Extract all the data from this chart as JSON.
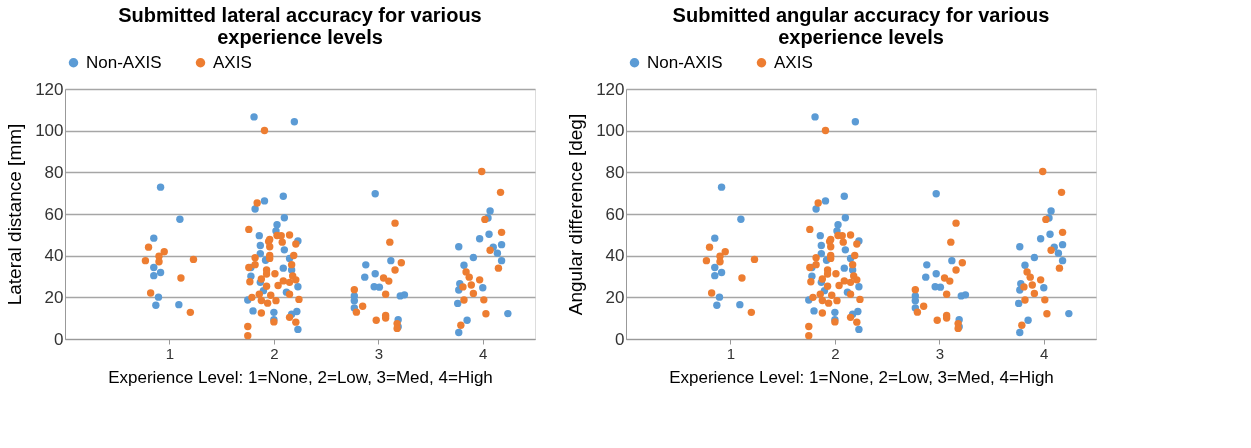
{
  "chart_data": [
    {
      "type": "scatter",
      "title": "Submitted lateral accuracy for various experience levels",
      "xlabel": "Experience Level: 1=None, 2=Low, 3=Med, 4=High",
      "ylabel": "Lateral distance [mm]",
      "xlim": [
        0,
        4.5
      ],
      "xticks": [
        1,
        2,
        3,
        4
      ],
      "ylim": [
        0,
        120
      ],
      "yticks": [
        0,
        20,
        40,
        60,
        80,
        100,
        120
      ],
      "grid": "y",
      "legend": "top",
      "marker": "circle",
      "series": [
        {
          "name": "Non-AXIS",
          "color": "#5b9bd5",
          "x": [
            0.915,
            1.1,
            0.85,
            0.85,
            0.85,
            0.915,
            0.895,
            0.87,
            1.09,
            1.81,
            1.91,
            1.82,
            2.09,
            2.1,
            2.03,
            2.02,
            1.86,
            1.87,
            1.87,
            1.92,
            2.09,
            1.78,
            1.78,
            1.87,
            1.9,
            1.75,
            1.8,
            2.0,
            2.0,
            2.1,
            2.196,
            2.23,
            2.15,
            2.17,
            2.23,
            2.12,
            2.22,
            2.17,
            2.23,
            2.97,
            2.88,
            2.87,
            2.97,
            3.12,
            2.96,
            3.01,
            2.77,
            2.77,
            2.77,
            3.21,
            3.25,
            3.19,
            3.19,
            3.77,
            3.82,
            3.91,
            3.97,
            4.06,
            4.07,
            4.05,
            4.1,
            4.14,
            4.18,
            4.18,
            3.78,
            3.77,
            3.76,
            4.0,
            3.85,
            4.24,
            3.77
          ],
          "values": [
            72.9,
            57.5,
            48.4,
            34.3,
            30.4,
            31.9,
            20.1,
            16.2,
            16.5,
            106.6,
            66.3,
            62.4,
            68.5,
            58.2,
            54.9,
            51.9,
            49.6,
            44.9,
            41.0,
            37.8,
            34.0,
            34.3,
            30.1,
            27.2,
            23.2,
            18.7,
            13.5,
            12.8,
            9.3,
            42.8,
            104.3,
            47.1,
            38.7,
            33.1,
            25.1,
            22.5,
            13.2,
            11.9,
            4.6,
            69.7,
            35.6,
            29.7,
            31.3,
            37.6,
            25.1,
            24.9,
            20.7,
            18.4,
            14.9,
            20.7,
            21.2,
            9.3,
            5.9,
            44.3,
            35.4,
            39.1,
            48.1,
            50.3,
            61.5,
            58.1,
            44.1,
            41.2,
            45.3,
            37.6,
            26.5,
            23.5,
            17.1,
            24.6,
            9.0,
            12.2,
            3.1
          ]
        },
        {
          "name": "AXIS",
          "color": "#ed7d31",
          "x": [
            0.8,
            0.77,
            0.95,
            0.9,
            0.9,
            1.23,
            1.11,
            0.82,
            1.2,
            1.91,
            1.84,
            1.76,
            1.95,
            1.96,
            2.03,
            2.07,
            2.08,
            1.82,
            1.96,
            1.96,
            1.96,
            1.82,
            1.76,
            1.93,
            2.01,
            1.93,
            1.88,
            1.77,
            1.93,
            2.09,
            2.04,
            1.86,
            1.79,
            1.97,
            2.02,
            1.88,
            1.94,
            1.88,
            2.0,
            1.75,
            1.75,
            2.15,
            2.21,
            2.19,
            2.17,
            2.18,
            2.21,
            2.15,
            2.15,
            2.24,
            2.15,
            2.21,
            3.16,
            3.11,
            3.22,
            3.16,
            3.05,
            3.1,
            3.07,
            2.77,
            2.85,
            2.79,
            2.98,
            3.07,
            3.07,
            3.18,
            3.18,
            3.99,
            4.17,
            4.02,
            4.18,
            4.07,
            4.15,
            3.84,
            3.87,
            3.81,
            3.89,
            3.97,
            3.91,
            3.82,
            4.01,
            4.03,
            3.79
          ],
          "values": [
            44.1,
            37.6,
            41.9,
            39.7,
            37.1,
            38.2,
            29.3,
            22.1,
            12.8,
            100.1,
            65.3,
            52.6,
            46.8,
            47.8,
            49.7,
            49.6,
            46.5,
            39.0,
            44.3,
            40.1,
            38.7,
            35.7,
            34.3,
            33.1,
            31.3,
            31.2,
            28.8,
            27.5,
            25.3,
            27.9,
            25.7,
            21.5,
            20.0,
            21.0,
            18.4,
            18.5,
            17.2,
            12.5,
            8.2,
            6.0,
            1.6,
            49.9,
            45.6,
            40.1,
            35.7,
            30.3,
            28.4,
            27.2,
            21.5,
            19.0,
            10.4,
            8.1,
            55.6,
            46.5,
            36.6,
            33.1,
            29.3,
            27.8,
            21.5,
            23.7,
            15.7,
            12.9,
            9.0,
            11.3,
            10.1,
            7.4,
            5.1,
            80.4,
            70.4,
            57.4,
            51.2,
            42.6,
            34.0,
            32.2,
            29.7,
            25.0,
            25.9,
            28.4,
            21.9,
            18.7,
            18.8,
            12.1,
            6.6
          ]
        }
      ]
    },
    {
      "type": "scatter",
      "title": "Submitted angular accuracy for various experience levels",
      "xlabel": "Experience Level: 1=None, 2=Low, 3=Med, 4=High",
      "ylabel": "Angular difference [deg]",
      "xlim": [
        0,
        4.5
      ],
      "xticks": [
        1,
        2,
        3,
        4
      ],
      "ylim": [
        0,
        120
      ],
      "yticks": [
        0,
        20,
        40,
        60,
        80,
        100,
        120
      ],
      "grid": "y",
      "legend": "top",
      "marker": "circle",
      "series": [
        {
          "name": "Non-AXIS",
          "color": "#5b9bd5",
          "x": [
            0.915,
            1.1,
            0.85,
            0.85,
            0.85,
            0.915,
            0.895,
            0.87,
            1.09,
            1.81,
            1.91,
            1.82,
            2.09,
            2.1,
            2.03,
            2.02,
            1.86,
            1.87,
            1.87,
            1.92,
            2.09,
            1.78,
            1.78,
            1.87,
            1.9,
            1.75,
            1.8,
            2.0,
            2.0,
            2.1,
            2.196,
            2.23,
            2.15,
            2.17,
            2.23,
            2.12,
            2.22,
            2.17,
            2.23,
            2.97,
            2.88,
            2.87,
            2.97,
            3.12,
            2.96,
            3.01,
            2.77,
            2.77,
            2.77,
            3.21,
            3.25,
            3.19,
            3.19,
            3.77,
            3.82,
            3.91,
            3.97,
            4.06,
            4.07,
            4.05,
            4.1,
            4.14,
            4.18,
            4.18,
            3.78,
            3.77,
            3.76,
            4.0,
            3.85,
            4.24,
            3.77
          ],
          "values": [
            72.9,
            57.5,
            48.4,
            34.3,
            30.4,
            31.9,
            20.1,
            16.2,
            16.5,
            106.6,
            66.3,
            62.4,
            68.5,
            58.2,
            54.9,
            51.9,
            49.6,
            44.9,
            41.0,
            37.8,
            34.0,
            34.3,
            30.1,
            27.2,
            23.2,
            18.7,
            13.5,
            12.8,
            9.3,
            42.8,
            104.3,
            47.1,
            38.7,
            33.1,
            25.1,
            22.5,
            13.2,
            11.9,
            4.6,
            69.7,
            35.6,
            29.7,
            31.3,
            37.6,
            25.1,
            24.9,
            20.7,
            18.4,
            14.9,
            20.7,
            21.2,
            9.3,
            5.9,
            44.3,
            35.4,
            39.1,
            48.1,
            50.3,
            61.5,
            58.1,
            44.1,
            41.2,
            45.3,
            37.6,
            26.5,
            23.5,
            17.1,
            24.6,
            9.0,
            12.2,
            3.1
          ]
        },
        {
          "name": "AXIS",
          "color": "#ed7d31",
          "x": [
            0.8,
            0.77,
            0.95,
            0.9,
            0.9,
            1.23,
            1.11,
            0.82,
            1.2,
            1.91,
            1.84,
            1.76,
            1.95,
            1.96,
            2.03,
            2.07,
            2.08,
            1.82,
            1.96,
            1.96,
            1.96,
            1.82,
            1.76,
            1.93,
            2.01,
            1.93,
            1.88,
            1.77,
            1.93,
            2.09,
            2.04,
            1.86,
            1.79,
            1.97,
            2.02,
            1.88,
            1.94,
            1.88,
            2.0,
            1.75,
            1.75,
            2.15,
            2.21,
            2.19,
            2.17,
            2.18,
            2.21,
            2.15,
            2.15,
            2.24,
            2.15,
            2.21,
            3.16,
            3.11,
            3.22,
            3.16,
            3.05,
            3.1,
            3.07,
            2.77,
            2.85,
            2.79,
            2.98,
            3.07,
            3.07,
            3.18,
            3.18,
            3.99,
            4.17,
            4.02,
            4.18,
            4.07,
            4.15,
            3.84,
            3.87,
            3.81,
            3.89,
            3.97,
            3.91,
            3.82,
            4.01,
            4.03,
            3.79
          ],
          "values": [
            44.1,
            37.6,
            41.9,
            39.7,
            37.1,
            38.2,
            29.3,
            22.1,
            12.8,
            100.1,
            65.3,
            52.6,
            46.8,
            47.8,
            49.7,
            49.6,
            46.5,
            39.0,
            44.3,
            40.1,
            38.7,
            35.7,
            34.3,
            33.1,
            31.3,
            31.2,
            28.8,
            27.5,
            25.3,
            27.9,
            25.7,
            21.5,
            20.0,
            21.0,
            18.4,
            18.5,
            17.2,
            12.5,
            8.2,
            6.0,
            1.6,
            49.9,
            45.6,
            40.1,
            35.7,
            30.3,
            28.4,
            27.2,
            21.5,
            19.0,
            10.4,
            8.1,
            55.6,
            46.5,
            36.6,
            33.1,
            29.3,
            27.8,
            21.5,
            23.7,
            15.7,
            12.9,
            9.0,
            11.3,
            10.1,
            7.4,
            5.1,
            80.4,
            70.4,
            57.4,
            51.2,
            42.6,
            34.0,
            32.2,
            29.7,
            25.0,
            25.9,
            28.4,
            21.9,
            18.7,
            18.8,
            12.1,
            6.6
          ]
        }
      ]
    }
  ]
}
